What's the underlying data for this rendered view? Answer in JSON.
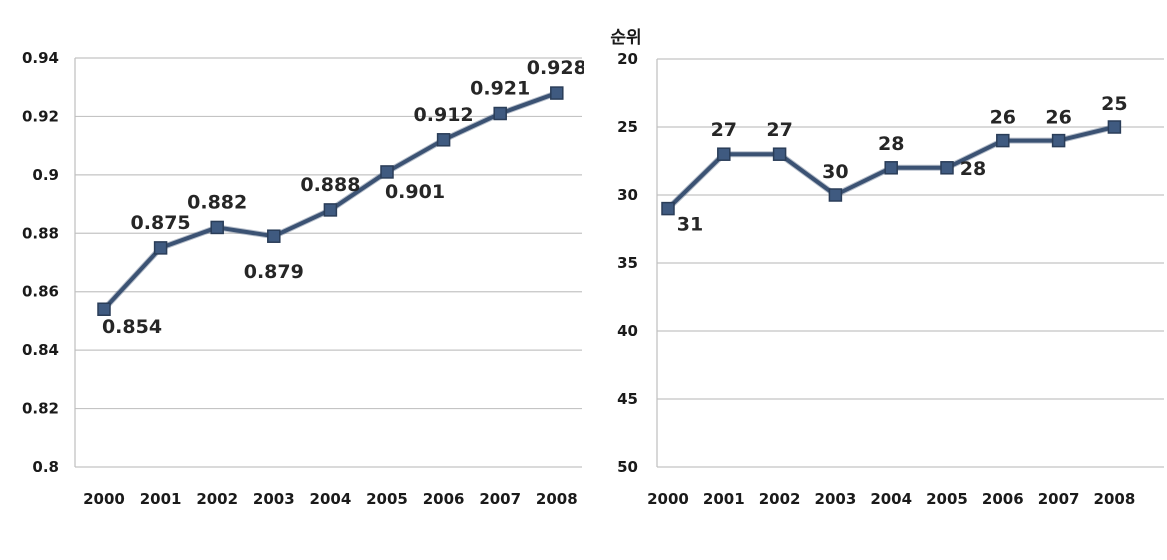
{
  "chart_data": [
    {
      "type": "line",
      "categories": [
        "2000",
        "2001",
        "2002",
        "2003",
        "2004",
        "2005",
        "2006",
        "2007",
        "2008"
      ],
      "series": [
        {
          "values": [
            0.854,
            0.875,
            0.882,
            0.879,
            0.888,
            0.901,
            0.912,
            0.921,
            0.928
          ]
        }
      ],
      "data_labels": [
        "0.854",
        "0.875",
        "0.882",
        "0.879",
        "0.888",
        "0.901",
        "0.912",
        "0.921",
        "0.928"
      ],
      "ylim": [
        0.8,
        0.94
      ],
      "yticks": [
        0.8,
        0.82,
        0.84,
        0.86,
        0.88,
        0.9,
        0.92,
        0.94
      ],
      "ytick_labels": [
        "0.8",
        "0.82",
        "0.84",
        "0.86",
        "0.88",
        "0.9",
        "0.92",
        "0.94"
      ],
      "ylabel": "",
      "xlabel": "",
      "grid": true,
      "line_color": "#3b5273",
      "marker": "square"
    },
    {
      "type": "line",
      "categories": [
        "2000",
        "2001",
        "2002",
        "2003",
        "2004",
        "2005",
        "2006",
        "2007",
        "2008"
      ],
      "series": [
        {
          "values": [
            31,
            27,
            27,
            30,
            28,
            28,
            26,
            26,
            25
          ]
        }
      ],
      "data_labels": [
        "31",
        "27",
        "27",
        "30",
        "28",
        "28",
        "26",
        "26",
        "25"
      ],
      "ylim": [
        20,
        50
      ],
      "y_inverted": true,
      "yticks": [
        20,
        25,
        30,
        35,
        40,
        45,
        50
      ],
      "ytick_labels": [
        "20",
        "25",
        "30",
        "35",
        "40",
        "45",
        "50"
      ],
      "ylabel": "순위",
      "xlabel": "",
      "grid": true,
      "line_color": "#3b5273",
      "marker": "square"
    }
  ]
}
